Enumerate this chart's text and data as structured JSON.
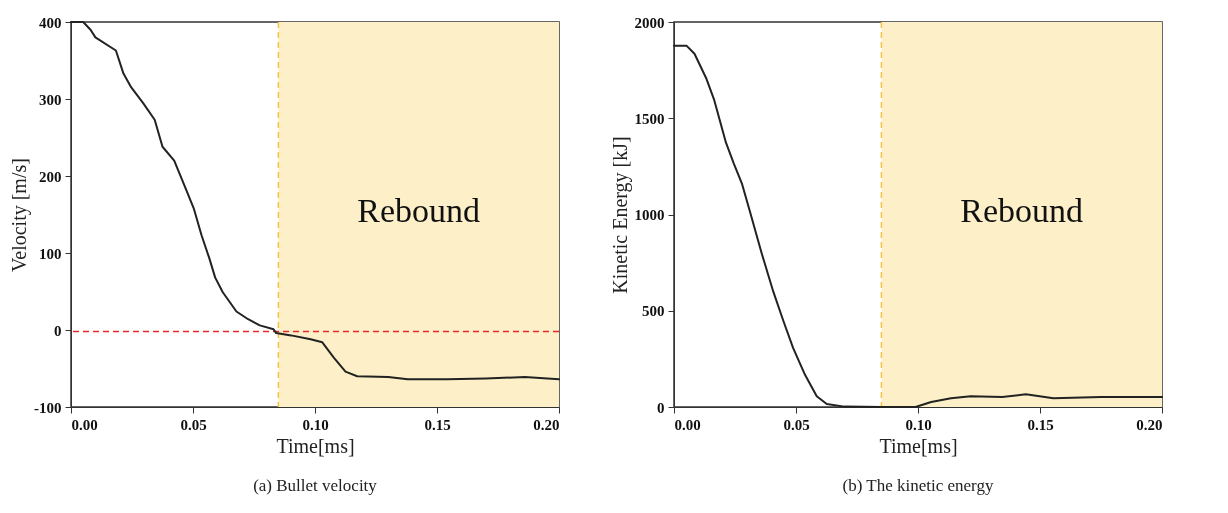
{
  "chart_data": [
    {
      "type": "line",
      "title": "(a) Bullet velocity",
      "xlabel": "Time[ms]",
      "ylabel": "Velocity [m/s]",
      "xlim": [
        0,
        0.2
      ],
      "ylim": [
        -100,
        400
      ],
      "xticks": [
        {
          "value": 0,
          "label": "0.00"
        },
        {
          "value": 0.05,
          "label": "0.05"
        },
        {
          "value": 0.1,
          "label": "0.10"
        },
        {
          "value": 0.15,
          "label": "0.15"
        },
        {
          "value": 0.2,
          "label": "0.20"
        }
      ],
      "yticks": [
        -100,
        0,
        100,
        200,
        300,
        400
      ],
      "bands": [
        {
          "axis": "x",
          "from": 0.085,
          "to": 0.2,
          "label": "Rebound",
          "color": "#fdf0c9"
        }
      ],
      "ref_lines": [
        {
          "axis": "y",
          "value": -2,
          "color": "#e8262b",
          "line_style": "dashed"
        },
        {
          "axis": "x",
          "value": 0.085,
          "color": "#f5c242",
          "line_style": "dashed"
        }
      ],
      "x": [
        0,
        0.005,
        0.008,
        0.01,
        0.0184,
        0.0215,
        0.0247,
        0.0295,
        0.0343,
        0.0375,
        0.0423,
        0.0471,
        0.0503,
        0.0535,
        0.0567,
        0.0591,
        0.0622,
        0.0678,
        0.0726,
        0.0774,
        0.083,
        0.0841,
        0.0902,
        0.0982,
        0.103,
        0.1077,
        0.1125,
        0.1173,
        0.13,
        0.138,
        0.154,
        0.17,
        0.186,
        0.2
      ],
      "series": [
        {
          "color": "#222222",
          "values": [
            400,
            400,
            390,
            380,
            363,
            333,
            315,
            295,
            273,
            238,
            220,
            183,
            158,
            123,
            93,
            68,
            49,
            24,
            14,
            6,
            1,
            -4,
            -7,
            -12,
            -16,
            -36,
            -54,
            -60,
            -61,
            -64,
            -64,
            -63,
            -61,
            -64
          ]
        }
      ]
    },
    {
      "type": "line",
      "title": "(b) The kinetic energy",
      "xlabel": "Time[ms]",
      "ylabel": "Kinetic Energy [kJ]",
      "xlim": [
        0,
        0.2
      ],
      "ylim": [
        0,
        2000
      ],
      "xticks": [
        {
          "value": 0,
          "label": "0.00"
        },
        {
          "value": 0.05,
          "label": "0.05"
        },
        {
          "value": 0.1,
          "label": "0.10"
        },
        {
          "value": 0.15,
          "label": "0.15"
        },
        {
          "value": 0.2,
          "label": "0.20"
        }
      ],
      "yticks": [
        0,
        500,
        1000,
        1500,
        2000
      ],
      "bands": [
        {
          "axis": "x",
          "from": 0.085,
          "to": 0.2,
          "label": "Rebound",
          "color": "#fdf0c9"
        }
      ],
      "ref_lines": [
        {
          "axis": "x",
          "value": 0.085,
          "color": "#f5c242",
          "line_style": "dashed"
        }
      ],
      "x": [
        0,
        0.0052,
        0.0084,
        0.0133,
        0.0165,
        0.0213,
        0.0246,
        0.0278,
        0.031,
        0.0359,
        0.0407,
        0.0448,
        0.0488,
        0.0537,
        0.0585,
        0.0626,
        0.0698,
        0.085,
        0.099,
        0.1054,
        0.1135,
        0.1216,
        0.1345,
        0.1442,
        0.1555,
        0.175,
        0.2
      ],
      "series": [
        {
          "color": "#222222",
          "values": [
            1876,
            1876,
            1835,
            1705,
            1594,
            1373,
            1262,
            1162,
            1021,
            800,
            599,
            448,
            307,
            167,
            56,
            16,
            2,
            0,
            0,
            26,
            46,
            56,
            52,
            66,
            46,
            52,
            52
          ]
        }
      ]
    }
  ]
}
